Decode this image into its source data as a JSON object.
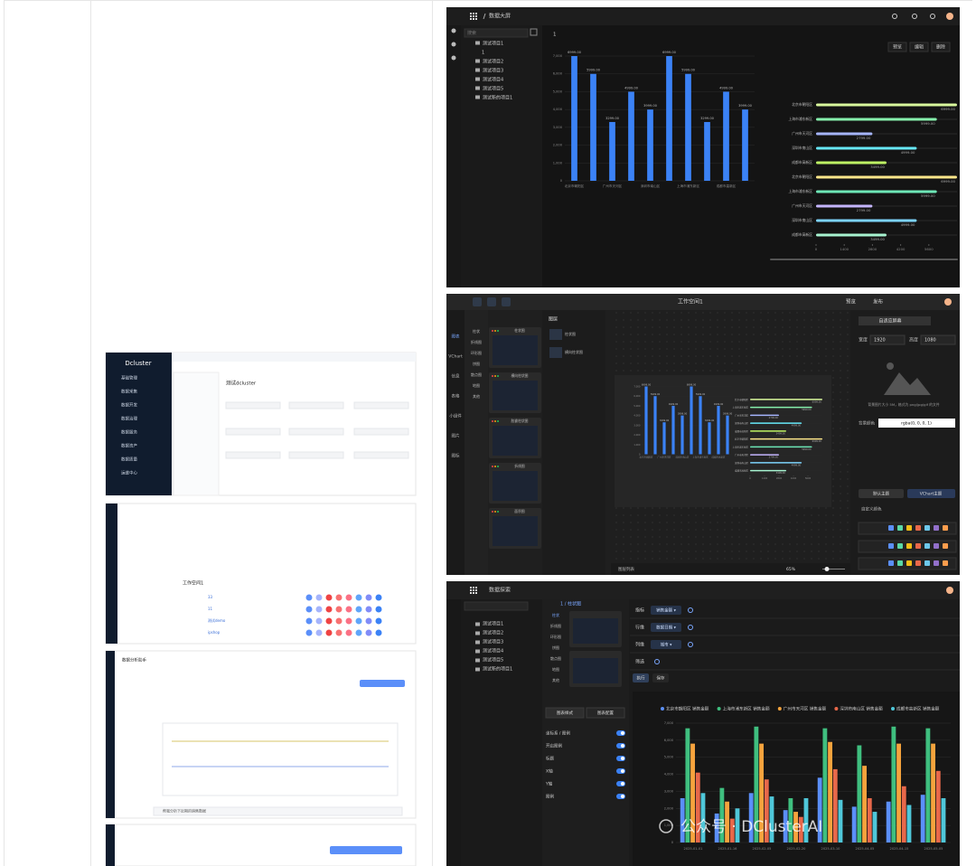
{
  "dashboard": {
    "breadcrumb": "数据大屏",
    "search": "搜索",
    "tab": "1",
    "tree": [
      "测试项目1",
      "1",
      "测试项目2",
      "测试项目3",
      "测试项目4",
      "测试项目5",
      "测试新的项目1"
    ],
    "buttons": [
      "预览",
      "编辑",
      "删除"
    ],
    "chart_data": [
      {
        "type": "bar",
        "categories": [
          "北京市朝阳区",
          null,
          "广州市天河区",
          null,
          "深圳市南山区",
          null,
          "上海市浦东新区",
          null,
          "成都市高新区",
          null
        ],
        "values": [
          6999,
          5999,
          3299,
          4999,
          3999,
          6999,
          5999,
          3299,
          4999,
          3999
        ],
        "value_labels": [
          "6999.00",
          "5999.00",
          "3299.00",
          "4999.00",
          "3999.00",
          "6999.00",
          "5999.00",
          "3299.00",
          "4999.00",
          "3999.00"
        ],
        "color": "#3b82f6",
        "ylim": [
          0,
          7000
        ],
        "yticks": [
          0,
          {
            "value": 1000,
            "label": "1,000"
          },
          {
            "value": 2000,
            "label": "2,000"
          },
          {
            "value": 3000,
            "label": "3,000"
          },
          {
            "value": 4000,
            "label": "4,000"
          },
          {
            "value": 5000,
            "label": "5,000"
          },
          {
            "value": 6000,
            "label": "6,000"
          },
          {
            "value": 7000,
            "label": "7,000"
          }
        ],
        "grid": true
      },
      {
        "type": "bar",
        "horizontal": true,
        "categories": [
          "北京市朝阳区",
          "上海市浦东新区",
          "广州市天河区",
          "深圳市南山区",
          "成都市高新区",
          "北京市朝阳区",
          "上海市浦东新区",
          "广州市天河区",
          "深圳市南山区",
          "成都市高新区"
        ],
        "values": [
          6999,
          5999,
          2799,
          4999,
          3499,
          6999,
          5999,
          2799,
          4999,
          3499
        ],
        "value_labels": [
          "6999.00",
          "5999.00",
          "2799.00",
          "4999.00",
          "3499.00",
          "6999.00",
          "5999.00",
          "2799.00",
          "4999.00",
          "3499.00"
        ],
        "colors": [
          "#d9f99d",
          "#86efac",
          "#a5b4fc",
          "#67e8f9",
          "#bef264",
          "#fde68a",
          "#6ee7b7",
          "#c4b5fd",
          "#7dd3fc",
          "#a7f3d0"
        ],
        "xlim": [
          0,
          7000
        ],
        "xticks": [
          0,
          1400,
          2800,
          4200,
          5600
        ]
      }
    ]
  },
  "editor": {
    "title": "工作空间1",
    "header_buttons": [
      "预览",
      "发布"
    ],
    "left_menu": [
      "图表",
      "VChart",
      "信息",
      "表格",
      "小组件",
      "图片",
      "图标"
    ],
    "categories": [
      "柱状",
      "折线图",
      "环形图",
      "饼图",
      "散点图",
      "地图",
      "其他"
    ],
    "cards": [
      "柱状图",
      "横向柱状图",
      "胶囊柱状图",
      "折线图",
      "面积图"
    ],
    "layers": "图层",
    "layer_items": [
      "柱状图",
      "横向柱状图"
    ],
    "settings": {
      "fit": "自适应屏幕",
      "width_label": "宽度",
      "width": "1920",
      "height_label": "高度",
      "height": "1080",
      "hint": "背景图片大小 5M，格式为 png/jpg/gif 的文件",
      "bg_label": "背景颜色",
      "bg_color": "rgba(0, 0, 0, 1)",
      "theme_a": "默认主题",
      "theme_b": "VChart主题",
      "palette": "自定义颜色"
    },
    "footer": "图层列表",
    "zoom": "65%"
  },
  "explore": {
    "breadcrumb": "数据探索",
    "tab": "1 / 柱状图",
    "tree": [
      "测试项目1",
      "测试项目2",
      "测试项目3",
      "测试项目4",
      "测试项目5",
      "测试新的项目1"
    ],
    "menu": [
      "柱状",
      "折线图",
      "环形图",
      "饼图",
      "散点图",
      "地图",
      "其他"
    ],
    "toggles": [
      "坐标系 / 图例",
      "开启图例",
      "标题",
      "X轴",
      "Y轴",
      "图例"
    ],
    "tabs": [
      "图表样式",
      "图表配置"
    ],
    "fields": [
      {
        "label": "指标",
        "tag": "销售金额 ▾"
      },
      {
        "label": "行维",
        "tag": "数据日期 ▾"
      },
      {
        "label": "列维",
        "tag": "城市 ▾"
      },
      {
        "label": "筛选",
        "tag": null
      }
    ],
    "buttons": [
      "执行",
      "保存"
    ],
    "chart_data": {
      "type": "bar",
      "categories": [
        "2025-01-01",
        "2025-01-16",
        "2025-02-05",
        "2025-02-20",
        "2025-03-10",
        "2025-04-05",
        "2025-04-15",
        "2025-05-05"
      ],
      "series": [
        {
          "name": "北京市朝阳区 销售金额",
          "color": "#5b8ff9",
          "values": [
            2600,
            1700,
            2900,
            1900,
            3800,
            2100,
            2400,
            2800
          ]
        },
        {
          "name": "上海市浦东新区 销售金额",
          "color": "#3fbf7f",
          "values": [
            6700,
            3200,
            6800,
            2600,
            6700,
            5700,
            6800,
            6700
          ]
        },
        {
          "name": "广州市天河区 销售金额",
          "color": "#f6a33d",
          "values": [
            5800,
            2400,
            5800,
            1800,
            5900,
            4500,
            5800,
            5800
          ]
        },
        {
          "name": "深圳市南山区 销售金额",
          "color": "#e8684a",
          "values": [
            4100,
            1400,
            3700,
            1500,
            4300,
            2600,
            3300,
            4200
          ]
        },
        {
          "name": "成都市高新区 销售金额",
          "color": "#4fc7d9",
          "values": [
            2900,
            2000,
            2700,
            2600,
            2500,
            1800,
            2200,
            2600
          ]
        }
      ],
      "ylim": [
        0,
        7000
      ],
      "yticks": [
        0,
        {
          "value": 1000,
          "label": "1,000"
        },
        {
          "value": 2000,
          "label": "2,000"
        },
        {
          "value": 3000,
          "label": "3,000"
        },
        {
          "value": 4000,
          "label": "4,000"
        },
        {
          "value": 5000,
          "label": "5,000"
        },
        {
          "value": 6000,
          "label": "6,000"
        },
        {
          "value": 7000,
          "label": "7,000"
        }
      ],
      "grid": true
    }
  },
  "thumbs": {
    "brand": "Dcluster",
    "menu": [
      "基础管理",
      "数据采集",
      "数据开发",
      "数据治理",
      "数据服务",
      "数据资产",
      "数据质量",
      "运维中心"
    ],
    "title": "测试dcluster",
    "workspace": "工作空间1",
    "rows": [
      "33",
      "11",
      "测试demo",
      "ipshop"
    ],
    "chat": "数据分析助手",
    "question": "帮我分析下近期的销售数据"
  },
  "watermark": "公众号 · DClusterAI"
}
